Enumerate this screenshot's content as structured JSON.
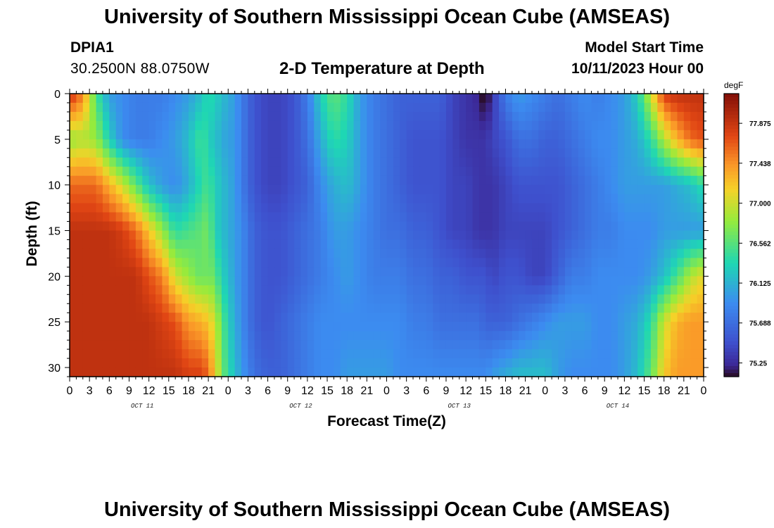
{
  "header": {
    "title": "University of Southern Mississippi Ocean Cube (AMSEAS)",
    "station_id": "DPIA1",
    "coordinates": "30.2500N  88.0750W",
    "subtitle": "2-D Temperature at Depth",
    "model_start_label": "Model Start Time",
    "model_start_value": "10/11/2023 Hour 00"
  },
  "footer": {
    "title": "University of Southern Mississippi Ocean Cube (AMSEAS)"
  },
  "chart_data": {
    "type": "heatmap",
    "title": "2-D Temperature at Depth",
    "xlabel": "Forecast Time(Z)",
    "ylabel": "Depth (ft)",
    "x_range_hours": [
      0,
      96
    ],
    "x_tick_step_hours": 3,
    "x_tick_labels": [
      "0",
      "3",
      "6",
      "9",
      "12",
      "15",
      "18",
      "21",
      "0",
      "3",
      "6",
      "9",
      "12",
      "15",
      "18",
      "21",
      "0",
      "3",
      "6",
      "9",
      "12",
      "15",
      "18",
      "21",
      "0",
      "3",
      "6",
      "9",
      "12",
      "15",
      "18",
      "21",
      "0"
    ],
    "day_labels": [
      {
        "text": "OCT 11",
        "hour": 11
      },
      {
        "text": "OCT 12",
        "hour": 35
      },
      {
        "text": "OCT 13",
        "hour": 59
      },
      {
        "text": "OCT 14",
        "hour": 83
      }
    ],
    "y_range_ft": [
      0,
      31
    ],
    "y_ticks": [
      0,
      5,
      10,
      15,
      20,
      25,
      30
    ],
    "y_tick_labels": [
      "0",
      "5",
      "10",
      "15",
      "20",
      "25",
      "30"
    ],
    "colorbar": {
      "unit": "degF",
      "range": [
        75.1,
        78.2
      ],
      "tick_values": [
        77.875,
        77.438,
        77.0,
        76.562,
        76.125,
        75.688,
        75.25
      ],
      "tick_labels": [
        "77.875",
        "77.438",
        "77.000",
        "76.562",
        "76.125",
        "75.688",
        "75.25"
      ]
    },
    "depth_rows_ft": [
      0,
      5,
      10,
      15,
      20,
      25,
      31
    ],
    "time_cols_hours": [
      0,
      2,
      4,
      6,
      8,
      10,
      12,
      14,
      16,
      18,
      20,
      21,
      22,
      23,
      24,
      25,
      26,
      28,
      30,
      32,
      34,
      36,
      38,
      40,
      42,
      44,
      46,
      48,
      50,
      52,
      54,
      56,
      58,
      60,
      62,
      63,
      64,
      66,
      68,
      70,
      72,
      74,
      76,
      78,
      80,
      82,
      84,
      86,
      88,
      90,
      92,
      94,
      96
    ],
    "temperature_degF": [
      [
        77.9,
        77.5,
        76.5,
        76.0,
        75.9,
        75.8,
        75.8,
        75.8,
        75.9,
        76.0,
        76.2,
        76.4,
        76.3,
        76.2,
        76.1,
        76.0,
        75.8,
        75.5,
        75.4,
        75.4,
        75.5,
        75.8,
        76.3,
        76.6,
        76.4,
        76.0,
        75.8,
        75.7,
        75.6,
        75.6,
        75.6,
        75.6,
        75.4,
        75.3,
        75.2,
        75.0,
        75.3,
        75.8,
        76.0,
        75.9,
        75.8,
        75.7,
        75.8,
        75.9,
        75.8,
        75.9,
        76.0,
        76.3,
        77.0,
        77.8,
        77.9,
        77.9,
        77.9
      ],
      [
        76.8,
        76.9,
        76.8,
        76.3,
        75.9,
        75.8,
        75.8,
        75.9,
        76.0,
        76.2,
        76.5,
        76.3,
        76.2,
        76.1,
        76.0,
        76.0,
        75.8,
        75.5,
        75.4,
        75.4,
        75.5,
        75.7,
        76.1,
        76.4,
        76.3,
        76.0,
        75.8,
        75.7,
        75.6,
        75.5,
        75.5,
        75.5,
        75.4,
        75.3,
        75.3,
        75.3,
        75.4,
        75.5,
        75.7,
        75.7,
        75.6,
        75.6,
        75.7,
        75.8,
        75.9,
        75.9,
        76.0,
        76.1,
        76.4,
        76.9,
        77.3,
        77.6,
        77.7
      ],
      [
        77.6,
        77.6,
        77.6,
        77.3,
        77.0,
        76.6,
        76.2,
        76.0,
        75.9,
        76.1,
        76.4,
        76.5,
        76.3,
        76.2,
        76.1,
        76.0,
        75.8,
        75.5,
        75.4,
        75.4,
        75.5,
        75.6,
        75.9,
        76.1,
        76.2,
        76.0,
        75.8,
        75.7,
        75.6,
        75.5,
        75.5,
        75.5,
        75.4,
        75.4,
        75.3,
        75.3,
        75.3,
        75.4,
        75.5,
        75.5,
        75.5,
        75.5,
        75.6,
        75.7,
        75.8,
        75.9,
        76.0,
        76.0,
        76.0,
        76.0,
        76.1,
        76.2,
        76.4
      ],
      [
        77.9,
        77.9,
        77.9,
        77.9,
        77.8,
        77.6,
        77.2,
        76.8,
        76.4,
        76.5,
        76.6,
        76.7,
        76.3,
        76.2,
        76.1,
        76.0,
        75.9,
        75.6,
        75.5,
        75.5,
        75.6,
        75.7,
        75.8,
        76.0,
        76.0,
        75.9,
        75.8,
        75.7,
        75.7,
        75.6,
        75.6,
        75.5,
        75.4,
        75.4,
        75.3,
        75.3,
        75.3,
        75.4,
        75.4,
        75.4,
        75.4,
        75.5,
        75.6,
        75.7,
        75.8,
        75.8,
        75.9,
        75.9,
        75.9,
        76.0,
        76.0,
        76.0,
        76.0
      ],
      [
        77.9,
        77.9,
        77.9,
        77.9,
        77.9,
        77.9,
        77.7,
        77.5,
        77.0,
        76.8,
        76.6,
        76.7,
        76.6,
        76.3,
        76.2,
        76.0,
        75.9,
        75.6,
        75.5,
        75.5,
        75.6,
        75.7,
        75.8,
        75.9,
        76.0,
        75.9,
        75.8,
        75.8,
        75.8,
        75.7,
        75.7,
        75.6,
        75.6,
        75.5,
        75.5,
        75.5,
        75.4,
        75.5,
        75.5,
        75.4,
        75.4,
        75.6,
        75.8,
        75.8,
        75.9,
        75.9,
        75.9,
        75.9,
        76.0,
        76.2,
        76.5,
        76.9,
        77.1
      ],
      [
        77.9,
        77.9,
        77.9,
        77.9,
        77.9,
        77.9,
        77.9,
        77.8,
        77.7,
        77.4,
        77.3,
        77.2,
        77.0,
        76.6,
        76.3,
        76.1,
        75.9,
        75.6,
        75.5,
        75.6,
        75.7,
        75.8,
        75.9,
        75.9,
        75.9,
        75.9,
        75.9,
        75.9,
        75.9,
        75.8,
        75.8,
        75.7,
        75.7,
        75.7,
        75.7,
        75.6,
        75.6,
        75.6,
        75.7,
        75.8,
        75.9,
        76.0,
        76.0,
        76.0,
        75.9,
        75.9,
        76.0,
        76.1,
        76.4,
        77.0,
        77.3,
        77.4,
        77.4
      ],
      [
        77.9,
        77.9,
        77.9,
        77.9,
        77.9,
        77.9,
        77.9,
        77.9,
        77.9,
        77.8,
        77.8,
        77.6,
        77.2,
        76.7,
        76.4,
        76.2,
        76.0,
        75.7,
        75.6,
        75.6,
        75.7,
        75.8,
        75.9,
        75.9,
        76.0,
        76.0,
        76.0,
        76.0,
        75.9,
        75.9,
        75.9,
        75.9,
        75.9,
        75.9,
        75.9,
        75.9,
        76.0,
        76.1,
        76.2,
        76.2,
        76.2,
        76.0,
        75.9,
        75.9,
        75.9,
        75.9,
        76.0,
        76.2,
        76.6,
        77.2,
        77.4,
        77.4,
        77.4
      ]
    ]
  }
}
